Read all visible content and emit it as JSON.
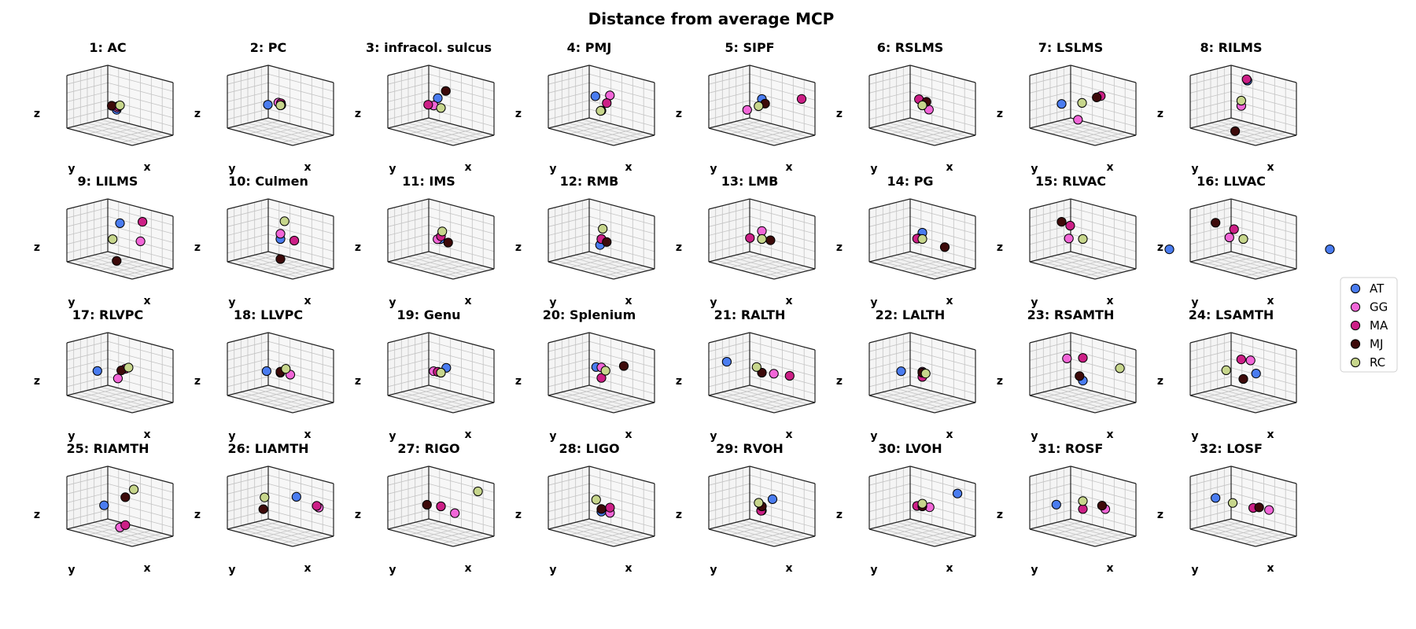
{
  "figure": {
    "title": "Distance from average MCP"
  },
  "legend": {
    "placement": "right",
    "entries": [
      {
        "name": "AT",
        "color": "#4a7cf0"
      },
      {
        "name": "GG",
        "color": "#f266d8"
      },
      {
        "name": "MA",
        "color": "#cc1f86"
      },
      {
        "name": "MJ",
        "color": "#3d0a0a"
      },
      {
        "name": "RC",
        "color": "#c7d68c"
      }
    ]
  },
  "chart_data": {
    "type": "scatter",
    "projection": "3d",
    "axis_labels": {
      "x": "x",
      "y": "y",
      "z": "z"
    },
    "grid": true,
    "tick_labels": false,
    "series_names": [
      "AT",
      "GG",
      "MA",
      "MJ",
      "RC"
    ],
    "panels": [
      {
        "title": "1: AC",
        "points": {
          "AT": [
            -0.05,
            0.0,
            -0.1
          ],
          "GG": [
            -0.03,
            0.02,
            -0.05
          ],
          "MA": [
            -0.02,
            0.02,
            -0.02
          ],
          "MJ": [
            -0.05,
            0.12,
            0.0
          ],
          "RC": [
            0.0,
            0.0,
            0.0
          ]
        }
      },
      {
        "title": "2: PC",
        "points": {
          "AT": [
            -0.08,
            0.18,
            0.02
          ],
          "GG": [
            -0.02,
            0.02,
            0.05
          ],
          "MA": [
            0.02,
            0.02,
            0.05
          ],
          "MJ": [
            0.0,
            -0.02,
            0.0
          ],
          "RC": [
            0.0,
            0.0,
            0.0
          ]
        }
      },
      {
        "title": "3: infracol. sulcus",
        "points": {
          "AT": [
            -0.08,
            -0.05,
            0.1
          ],
          "GG": [
            -0.08,
            0.05,
            -0.02
          ],
          "MA": [
            -0.02,
            0.28,
            0.06
          ],
          "MJ": [
            0.0,
            -0.12,
            0.25
          ],
          "RC": [
            0.0,
            0.0,
            -0.05
          ]
        }
      },
      {
        "title": "4: PMJ",
        "points": {
          "AT": [
            -0.08,
            0.02,
            0.15
          ],
          "GG": [
            0.08,
            -0.08,
            0.2
          ],
          "MA": [
            0.05,
            -0.05,
            0.05
          ],
          "MJ": [
            0.0,
            0.0,
            -0.1
          ],
          "RC": [
            0.0,
            0.02,
            -0.1
          ]
        }
      },
      {
        "title": "5: SIPF",
        "points": {
          "AT": [
            0.0,
            0.0,
            0.12
          ],
          "GG": [
            -0.1,
            0.2,
            -0.08
          ],
          "MA": [
            0.42,
            -0.3,
            0.2
          ],
          "MJ": [
            0.05,
            0.0,
            0.05
          ],
          "RC": [
            0.0,
            0.08,
            0.0
          ]
        }
      },
      {
        "title": "6: RSLMS",
        "points": {
          "AT": [
            0.0,
            0.0,
            0.0
          ],
          "GG": [
            0.05,
            -0.08,
            -0.08
          ],
          "MA": [
            -0.02,
            0.05,
            0.12
          ],
          "MJ": [
            0.05,
            -0.02,
            0.08
          ],
          "RC": [
            0.0,
            0.0,
            0.0
          ]
        }
      },
      {
        "title": "7: LSLMS",
        "points": {
          "AT": [
            -0.2,
            0.2,
            0.0
          ],
          "GG": [
            0.0,
            0.12,
            -0.25
          ],
          "MA": [
            0.2,
            -0.12,
            0.22
          ],
          "MJ": [
            0.15,
            -0.1,
            0.18
          ],
          "RC": [
            0.0,
            0.02,
            0.05
          ]
        }
      },
      {
        "title": "8: RILMS",
        "points": {
          "AT": [
            0.0,
            -0.1,
            0.45
          ],
          "GG": [
            0.0,
            0.05,
            0.0
          ],
          "MA": [
            0.0,
            -0.08,
            0.48
          ],
          "MJ": [
            0.0,
            0.2,
            -0.45
          ],
          "RC": [
            0.0,
            0.05,
            0.1
          ]
        }
      },
      {
        "title": "9: LILMS",
        "points": {
          "AT": [
            0.0,
            0.0,
            0.3
          ],
          "GG": [
            0.22,
            -0.15,
            0.0
          ],
          "MA": [
            0.25,
            -0.15,
            0.38
          ],
          "MJ": [
            0.0,
            0.08,
            -0.4
          ],
          "RC": [
            -0.05,
            0.1,
            0.0
          ]
        }
      },
      {
        "title": "10: Culmen",
        "points": {
          "AT": [
            0.0,
            0.0,
            0.0
          ],
          "GG": [
            0.0,
            0.0,
            0.1
          ],
          "MA": [
            0.15,
            -0.1,
            0.0
          ],
          "MJ": [
            0.0,
            0.0,
            -0.38
          ],
          "RC": [
            0.05,
            -0.02,
            0.35
          ]
        }
      },
      {
        "title": "11: IMS",
        "points": {
          "AT": [
            0.0,
            0.02,
            0.0
          ],
          "GG": [
            -0.02,
            0.05,
            0.0
          ],
          "MA": [
            0.0,
            0.0,
            0.05
          ],
          "MJ": [
            0.08,
            -0.05,
            -0.05
          ],
          "RC": [
            0.02,
            0.0,
            0.15
          ]
        }
      },
      {
        "title": "12: RMB",
        "points": {
          "AT": [
            -0.02,
            0.0,
            -0.12
          ],
          "GG": [
            0.0,
            0.0,
            0.0
          ],
          "MA": [
            0.0,
            0.0,
            0.0
          ],
          "MJ": [
            0.05,
            -0.05,
            -0.05
          ],
          "RC": [
            0.02,
            0.0,
            0.2
          ]
        }
      },
      {
        "title": "13: LMB",
        "points": {
          "AT": [
            0.0,
            0.0,
            0.0
          ],
          "GG": [
            0.0,
            0.0,
            0.15
          ],
          "MA": [
            -0.12,
            0.1,
            0.0
          ],
          "MJ": [
            0.1,
            -0.05,
            0.0
          ],
          "RC": [
            0.0,
            0.0,
            0.0
          ]
        }
      },
      {
        "title": "14: PG",
        "points": {
          "AT": [
            0.0,
            0.0,
            0.12
          ],
          "GG": [
            -0.05,
            0.02,
            0.0
          ],
          "MA": [
            -0.05,
            0.05,
            0.0
          ],
          "MJ": [
            0.25,
            -0.15,
            -0.1
          ],
          "RC": [
            0.0,
            0.0,
            0.0
          ]
        }
      },
      {
        "title": "15: RLVAC",
        "points": {
          "AT": [
            0.95,
            -0.6,
            0.0
          ],
          "GG": [
            -0.12,
            0.15,
            0.0
          ],
          "MA": [
            -0.1,
            0.15,
            0.25
          ],
          "MJ": [
            -0.2,
            0.2,
            0.3
          ],
          "RC": [
            0.0,
            0.0,
            0.0
          ]
        }
      },
      {
        "title": "16: LLVAC",
        "points": {
          "AT": [
            0.95,
            -0.6,
            0.0
          ],
          "GG": [
            -0.15,
            0.1,
            0.0
          ],
          "MA": [
            -0.08,
            0.1,
            0.18
          ],
          "MJ": [
            -0.3,
            0.2,
            0.25
          ],
          "RC": [
            0.0,
            0.0,
            0.0
          ]
        }
      },
      {
        "title": "17: RLVPC",
        "points": {
          "AT": [
            -0.22,
            0.2,
            0.0
          ],
          "GG": [
            0.0,
            0.05,
            -0.1
          ],
          "MA": [
            0.05,
            -0.05,
            0.08
          ],
          "MJ": [
            0.02,
            0.0,
            0.05
          ],
          "RC": [
            0.1,
            -0.05,
            0.12
          ]
        }
      },
      {
        "title": "18: LLVPC",
        "points": {
          "AT": [
            -0.15,
            0.1,
            0.0
          ],
          "GG": [
            0.1,
            -0.08,
            -0.02
          ],
          "MA": [
            0.0,
            0.0,
            0.0
          ],
          "MJ": [
            0.0,
            0.0,
            0.02
          ],
          "RC": [
            0.05,
            -0.05,
            0.08
          ]
        }
      },
      {
        "title": "19: Genu",
        "points": {
          "AT": [
            0.05,
            -0.05,
            0.1
          ],
          "GG": [
            -0.1,
            0.02,
            0.0
          ],
          "MA": [
            -0.05,
            0.0,
            0.0
          ],
          "MJ": [
            0.0,
            0.0,
            0.0
          ],
          "RC": [
            0.0,
            0.0,
            0.0
          ]
        }
      },
      {
        "title": "20: Splenium",
        "points": {
          "AT": [
            -0.05,
            0.05,
            0.1
          ],
          "GG": [
            0.0,
            0.0,
            0.1
          ],
          "MA": [
            0.0,
            0.0,
            -0.1
          ],
          "MJ": [
            0.25,
            -0.15,
            0.18
          ],
          "RC": [
            0.05,
            -0.02,
            0.05
          ]
        }
      },
      {
        "title": "21: RALTH",
        "points": {
          "AT": [
            -0.35,
            0.3,
            0.15
          ],
          "GG": [
            0.12,
            -0.1,
            0.0
          ],
          "MA": [
            0.3,
            -0.2,
            0.0
          ],
          "MJ": [
            0.0,
            0.0,
            0.0
          ],
          "RC": [
            -0.05,
            0.05,
            0.1
          ]
        }
      },
      {
        "title": "22: LALTH",
        "points": {
          "AT": [
            -0.2,
            0.2,
            0.0
          ],
          "GG": [
            0.0,
            0.0,
            0.02
          ],
          "MA": [
            0.0,
            0.0,
            -0.08
          ],
          "MJ": [
            0.0,
            0.0,
            0.0
          ],
          "RC": [
            0.05,
            0.0,
            0.0
          ]
        }
      },
      {
        "title": "23: RSAMTH",
        "points": {
          "AT": [
            0.0,
            0.0,
            -0.15
          ],
          "GG": [
            -0.15,
            0.15,
            0.25
          ],
          "MA": [
            0.0,
            0.0,
            0.28
          ],
          "MJ": [
            -0.05,
            0.0,
            -0.08
          ],
          "RC": [
            0.38,
            -0.3,
            0.15
          ]
        }
      },
      {
        "title": "24: LSAMTH",
        "points": {
          "AT": [
            0.12,
            -0.12,
            0.0
          ],
          "GG": [
            0.08,
            -0.05,
            0.25
          ],
          "MA": [
            -0.02,
            0.02,
            0.25
          ],
          "MJ": [
            0.0,
            0.0,
            -0.12
          ],
          "RC": [
            -0.2,
            0.1,
            0.0
          ]
        }
      },
      {
        "title": "25: RIAMTH",
        "points": {
          "AT": [
            -0.15,
            0.15,
            0.0
          ],
          "GG": [
            0.0,
            0.0,
            -0.4
          ],
          "MA": [
            0.05,
            -0.05,
            -0.35
          ],
          "MJ": [
            0.05,
            -0.05,
            0.18
          ],
          "RC": [
            0.15,
            -0.1,
            0.35
          ]
        }
      },
      {
        "title": "26: LIAMTH",
        "points": {
          "AT": [
            0.15,
            -0.15,
            0.2
          ],
          "GG": [
            0.4,
            -0.3,
            0.05
          ],
          "MA": [
            0.38,
            -0.28,
            0.08
          ],
          "MJ": [
            -0.2,
            0.1,
            -0.1
          ],
          "RC": [
            -0.15,
            0.15,
            0.15
          ]
        }
      },
      {
        "title": "27: RIGO",
        "points": {
          "AT": [
            0.0,
            0.0,
            0.0
          ],
          "GG": [
            0.15,
            -0.1,
            -0.1
          ],
          "MA": [
            0.0,
            0.0,
            0.0
          ],
          "MJ": [
            -0.15,
            0.1,
            0.0
          ],
          "RC": [
            0.38,
            -0.3,
            0.35
          ]
        }
      },
      {
        "title": "28: LIGO",
        "points": {
          "AT": [
            0.0,
            0.0,
            -0.1
          ],
          "GG": [
            0.1,
            -0.05,
            -0.1
          ],
          "MA": [
            0.1,
            -0.05,
            0.0
          ],
          "MJ": [
            0.0,
            0.0,
            -0.05
          ],
          "RC": [
            -0.05,
            0.05,
            0.12
          ]
        }
      },
      {
        "title": "29: RVOH",
        "points": {
          "AT": [
            0.1,
            -0.1,
            0.15
          ],
          "GG": [
            0.0,
            0.0,
            -0.08
          ],
          "MA": [
            0.0,
            0.02,
            -0.08
          ],
          "MJ": [
            0.0,
            0.0,
            0.0
          ],
          "RC": [
            -0.05,
            0.0,
            0.05
          ]
        }
      },
      {
        "title": "30: LVOH",
        "points": {
          "AT": [
            0.35,
            -0.3,
            0.3
          ],
          "GG": [
            0.08,
            -0.05,
            0.0
          ],
          "MA": [
            -0.05,
            0.05,
            0.0
          ],
          "MJ": [
            0.0,
            0.0,
            0.0
          ],
          "RC": [
            0.0,
            0.0,
            0.05
          ]
        }
      },
      {
        "title": "31: ROSF",
        "points": {
          "AT": [
            -0.25,
            0.25,
            0.0
          ],
          "GG": [
            0.25,
            -0.15,
            0.0
          ],
          "MA": [
            0.0,
            0.0,
            -0.05
          ],
          "MJ": [
            0.2,
            -0.15,
            0.05
          ],
          "RC": [
            0.0,
            0.0,
            0.1
          ]
        }
      },
      {
        "title": "32: LOSF",
        "points": {
          "AT": [
            -0.3,
            0.2,
            0.1
          ],
          "GG": [
            0.3,
            -0.15,
            0.0
          ],
          "MA": [
            0.12,
            -0.05,
            0.0
          ],
          "MJ": [
            0.18,
            -0.1,
            0.02
          ],
          "RC": [
            -0.1,
            0.1,
            0.05
          ]
        }
      }
    ]
  }
}
